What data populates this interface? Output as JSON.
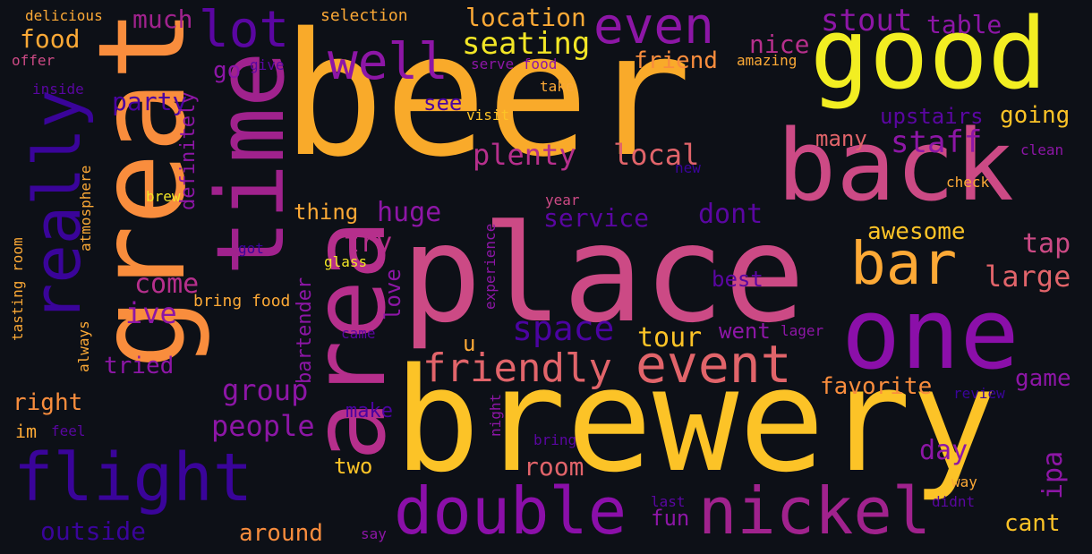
{
  "background": "#0d1017",
  "words": [
    {
      "text": "beer",
      "color": "#f9aa2a"
    },
    {
      "text": "brewery",
      "color": "#fcc327"
    },
    {
      "text": "place",
      "color": "#cc4a85"
    },
    {
      "text": "good",
      "color": "#f2ee22"
    },
    {
      "text": "great",
      "color": "#f98d3d"
    },
    {
      "text": "back",
      "color": "#cc4a85"
    },
    {
      "text": "one",
      "color": "#8b0fa9"
    },
    {
      "text": "area",
      "color": "#b62f8c"
    },
    {
      "text": "time",
      "color": "#a0228d"
    },
    {
      "text": "double",
      "color": "#8b0fa9"
    },
    {
      "text": "nickel",
      "color": "#a0228d"
    },
    {
      "text": "flight",
      "color": "#3a049a"
    },
    {
      "text": "really",
      "color": "#3a049a"
    },
    {
      "text": "bar",
      "color": "#fca936"
    },
    {
      "text": "event",
      "color": "#e1646a"
    },
    {
      "text": "well",
      "color": "#8d16a6"
    },
    {
      "text": "even",
      "color": "#8d16a6"
    },
    {
      "text": "lot",
      "color": "#5a06a1"
    },
    {
      "text": "friendly",
      "color": "#e1646a"
    },
    {
      "text": "space",
      "color": "#4b03a1"
    },
    {
      "text": "stout",
      "color": "#8d16a6"
    },
    {
      "text": "seating",
      "color": "#f2e626"
    },
    {
      "text": "location",
      "color": "#fca936"
    },
    {
      "text": "plenty",
      "color": "#b62f8c"
    },
    {
      "text": "staff",
      "color": "#8d16a6"
    },
    {
      "text": "local",
      "color": "#e1646a"
    },
    {
      "text": "service",
      "color": "#5a06a1"
    },
    {
      "text": "dont",
      "color": "#5a06a1"
    },
    {
      "text": "huge",
      "color": "#8d16a6"
    },
    {
      "text": "group",
      "color": "#8d16a6"
    },
    {
      "text": "people",
      "color": "#8d16a6"
    },
    {
      "text": "ive",
      "color": "#8d16a6"
    },
    {
      "text": "come",
      "color": "#b62f8c"
    },
    {
      "text": "try",
      "color": "#b62f8c"
    },
    {
      "text": "tour",
      "color": "#fcc327"
    },
    {
      "text": "awesome",
      "color": "#fcc327"
    },
    {
      "text": "tap",
      "color": "#cc4a85"
    },
    {
      "text": "large",
      "color": "#e1646a"
    },
    {
      "text": "game",
      "color": "#8d16a6"
    },
    {
      "text": "favorite",
      "color": "#f98d3d"
    },
    {
      "text": "room",
      "color": "#e1646a"
    },
    {
      "text": "day",
      "color": "#8d16a6"
    },
    {
      "text": "ipa",
      "color": "#8d16a6"
    },
    {
      "text": "fun",
      "color": "#8d16a6"
    },
    {
      "text": "cant",
      "color": "#fcc327"
    },
    {
      "text": "two",
      "color": "#fcc327"
    },
    {
      "text": "around",
      "color": "#f98d3d"
    },
    {
      "text": "outside",
      "color": "#3a049a"
    },
    {
      "text": "right",
      "color": "#f98d3d"
    },
    {
      "text": "tried",
      "color": "#8d16a6"
    },
    {
      "text": "upstairs",
      "color": "#5a06a1"
    },
    {
      "text": "going",
      "color": "#fcc327"
    },
    {
      "text": "many",
      "color": "#e1646a"
    },
    {
      "text": "friend",
      "color": "#f98d3d"
    },
    {
      "text": "nice",
      "color": "#b62f8c"
    },
    {
      "text": "table",
      "color": "#8d16a6"
    },
    {
      "text": "food",
      "color": "#fca936"
    },
    {
      "text": "much",
      "color": "#a0228d"
    },
    {
      "text": "go",
      "color": "#8d16a6"
    },
    {
      "text": "party",
      "color": "#4b03a1"
    },
    {
      "text": "definitely",
      "color": "#8d16a6"
    },
    {
      "text": "see",
      "color": "#4b03a1"
    },
    {
      "text": "thing",
      "color": "#fca936"
    },
    {
      "text": "best",
      "color": "#5a06a1"
    },
    {
      "text": "went",
      "color": "#8d16a6"
    },
    {
      "text": "u",
      "color": "#fca936"
    },
    {
      "text": "love",
      "color": "#8d16a6"
    },
    {
      "text": "bartender",
      "color": "#8d16a6"
    },
    {
      "text": "make",
      "color": "#4b03a1"
    },
    {
      "text": "im",
      "color": "#fca936"
    },
    {
      "text": "delicious",
      "color": "#fca936"
    },
    {
      "text": "selection",
      "color": "#fca936"
    },
    {
      "text": "offer",
      "color": "#cc4a85"
    },
    {
      "text": "give",
      "color": "#5a06a1"
    },
    {
      "text": "serve food",
      "color": "#8d16a6"
    },
    {
      "text": "amazing",
      "color": "#fca936"
    },
    {
      "text": "inside",
      "color": "#5a06a1"
    },
    {
      "text": "take",
      "color": "#fca936"
    },
    {
      "text": "visit",
      "color": "#fcc327"
    },
    {
      "text": "clean",
      "color": "#8d16a6"
    },
    {
      "text": "new",
      "color": "#3a049a"
    },
    {
      "text": "check",
      "color": "#fca936"
    },
    {
      "text": "brew",
      "color": "#f2e626"
    },
    {
      "text": "year",
      "color": "#cc4a85"
    },
    {
      "text": "atmosphere",
      "color": "#fca936"
    },
    {
      "text": "tasting room",
      "color": "#fca936"
    },
    {
      "text": "got",
      "color": "#3a049a"
    },
    {
      "text": "glass",
      "color": "#f2e626"
    },
    {
      "text": "bring food",
      "color": "#fca936"
    },
    {
      "text": "experience",
      "color": "#8d16a6"
    },
    {
      "text": "came",
      "color": "#5a06a1"
    },
    {
      "text": "lager",
      "color": "#8d16a6"
    },
    {
      "text": "always",
      "color": "#fca936"
    },
    {
      "text": "feel",
      "color": "#5a06a1"
    },
    {
      "text": "night",
      "color": "#8d16a6"
    },
    {
      "text": "bring",
      "color": "#5a06a1"
    },
    {
      "text": "review",
      "color": "#3a049a"
    },
    {
      "text": "way",
      "color": "#fca936"
    },
    {
      "text": "didnt",
      "color": "#5a06a1"
    },
    {
      "text": "last",
      "color": "#5a06a1"
    },
    {
      "text": "say",
      "color": "#8d16a6"
    }
  ]
}
